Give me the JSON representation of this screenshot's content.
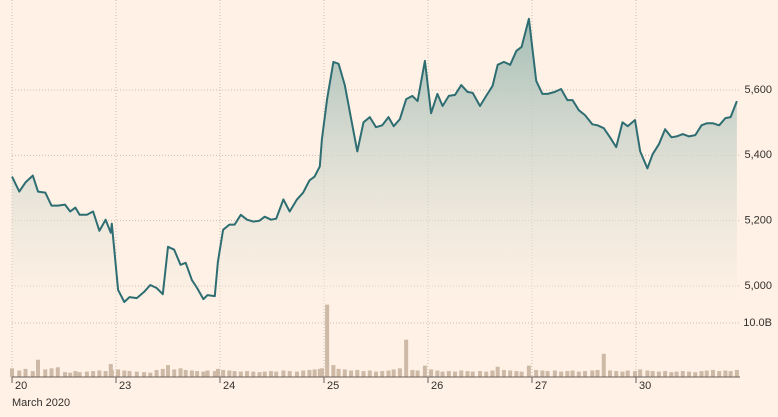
{
  "chart_data": [
    {
      "type": "area",
      "color": "#2e6e73",
      "x": [
        0,
        0.07,
        0.13,
        0.2,
        0.25,
        0.32,
        0.38,
        0.44,
        0.51,
        0.56,
        0.61,
        0.65,
        0.72,
        0.78,
        0.84,
        0.9,
        0.95,
        0.96,
        1.02,
        1.08,
        1.13,
        1.2,
        1.27,
        1.33,
        1.39,
        1.45,
        1.5,
        1.56,
        1.62,
        1.67,
        1.73,
        1.78,
        1.84,
        1.88,
        1.95,
        1.98,
        2.03,
        2.09,
        2.14,
        2.2,
        2.26,
        2.32,
        2.38,
        2.43,
        2.49,
        2.54,
        2.61,
        2.67,
        2.74,
        2.8,
        2.86,
        2.91,
        2.96,
        2.98,
        3.03,
        3.09,
        3.14,
        3.2,
        3.26,
        3.32,
        3.38,
        3.44,
        3.5,
        3.56,
        3.62,
        3.67,
        3.73,
        3.79,
        3.85,
        3.9,
        3.97,
        4.03,
        4.09,
        4.14,
        4.2,
        4.26,
        4.32,
        4.38,
        4.43,
        4.5,
        4.56,
        4.62,
        4.67,
        4.73,
        4.79,
        4.85,
        4.9,
        4.97,
        5.04,
        5.1,
        5.15,
        5.22,
        5.28,
        5.34,
        5.39,
        5.45,
        5.51,
        5.58,
        5.63,
        5.69,
        5.75,
        5.81,
        5.87,
        5.92,
        5.99,
        6.04,
        6.11,
        6.16,
        6.22,
        6.28,
        6.34,
        6.39,
        6.45,
        6.51,
        6.57,
        6.63,
        6.68,
        6.74,
        6.8,
        6.86,
        6.91,
        6.97
      ],
      "values": [
        5335,
        5289,
        5317,
        5338,
        5289,
        5286,
        5246,
        5246,
        5249,
        5228,
        5240,
        5218,
        5218,
        5228,
        5169,
        5203,
        5163,
        5191,
        4988,
        4951,
        4966,
        4963,
        4982,
        5003,
        4994,
        4975,
        5120,
        5111,
        5065,
        5071,
        5018,
        4994,
        4960,
        4972,
        4969,
        5074,
        5172,
        5188,
        5188,
        5218,
        5203,
        5197,
        5200,
        5212,
        5203,
        5206,
        5265,
        5228,
        5265,
        5286,
        5323,
        5335,
        5366,
        5449,
        5572,
        5686,
        5680,
        5615,
        5514,
        5412,
        5501,
        5517,
        5486,
        5492,
        5517,
        5489,
        5511,
        5572,
        5582,
        5566,
        5689,
        5529,
        5588,
        5551,
        5582,
        5585,
        5615,
        5594,
        5591,
        5551,
        5582,
        5612,
        5677,
        5686,
        5677,
        5720,
        5732,
        5818,
        5628,
        5588,
        5588,
        5594,
        5603,
        5569,
        5569,
        5538,
        5523,
        5495,
        5492,
        5483,
        5455,
        5425,
        5501,
        5489,
        5508,
        5412,
        5360,
        5403,
        5434,
        5480,
        5455,
        5458,
        5465,
        5458,
        5462,
        5492,
        5498,
        5498,
        5492,
        5514,
        5517,
        5566
      ],
      "xlim": [
        0,
        7
      ],
      "ylim": [
        4940,
        5850
      ],
      "yticks": [
        {
          "value": 5000,
          "label": "5,000"
        },
        {
          "value": 5200,
          "label": "5,200"
        },
        {
          "value": 5400,
          "label": "5,400"
        },
        {
          "value": 5600,
          "label": "5,600"
        }
      ],
      "grid": true
    },
    {
      "type": "bar",
      "color": "#cdb9a6",
      "xlabel": "March 2020",
      "x": [
        0,
        0.07,
        0.13,
        0.2,
        0.25,
        0.32,
        0.38,
        0.44,
        0.51,
        0.56,
        0.61,
        0.65,
        0.72,
        0.78,
        0.84,
        0.9,
        0.95,
        0.96,
        1.02,
        1.08,
        1.13,
        1.2,
        1.27,
        1.33,
        1.39,
        1.45,
        1.5,
        1.56,
        1.62,
        1.67,
        1.73,
        1.78,
        1.84,
        1.88,
        1.95,
        1.98,
        2.03,
        2.09,
        2.14,
        2.2,
        2.26,
        2.32,
        2.38,
        2.43,
        2.49,
        2.54,
        2.61,
        2.67,
        2.74,
        2.8,
        2.86,
        2.91,
        2.96,
        2.98,
        3.03,
        3.09,
        3.14,
        3.2,
        3.26,
        3.32,
        3.38,
        3.44,
        3.5,
        3.56,
        3.62,
        3.67,
        3.73,
        3.79,
        3.85,
        3.9,
        3.97,
        4.03,
        4.09,
        4.14,
        4.2,
        4.26,
        4.32,
        4.38,
        4.43,
        4.5,
        4.56,
        4.62,
        4.67,
        4.73,
        4.79,
        4.85,
        4.9,
        4.97,
        5.04,
        5.1,
        5.15,
        5.22,
        5.28,
        5.34,
        5.39,
        5.45,
        5.51,
        5.58,
        5.63,
        5.69,
        5.75,
        5.81,
        5.87,
        5.92,
        5.99,
        6.04,
        6.11,
        6.16,
        6.22,
        6.28,
        6.34,
        6.39,
        6.45,
        6.51,
        6.57,
        6.63,
        6.68,
        6.74,
        6.8,
        6.86,
        6.91,
        6.97
      ],
      "values": [
        1.6,
        1.2,
        1.5,
        1.1,
        3.2,
        1.4,
        1.6,
        1.8,
        0.9,
        0.8,
        1.1,
        0.9,
        1.0,
        1.1,
        1.2,
        1.1,
        2.4,
        1.3,
        1.4,
        1.2,
        1.1,
        1.0,
        0.9,
        0.8,
        1.3,
        1.5,
        2.2,
        1.4,
        1.6,
        1.3,
        1.2,
        1.1,
        1.0,
        1.2,
        1.1,
        1.5,
        1.3,
        1.2,
        1.1,
        1.0,
        1.1,
        1.0,
        0.9,
        1.0,
        1.1,
        1.0,
        1.2,
        1.1,
        1.0,
        1.2,
        1.3,
        1.4,
        1.5,
        1.6,
        13.4,
        2.2,
        1.5,
        1.4,
        1.2,
        1.3,
        1.1,
        1.2,
        1.0,
        1.1,
        1.2,
        1.4,
        1.6,
        6.9,
        1.3,
        1.2,
        2.1,
        1.4,
        1.2,
        1.0,
        1.1,
        1.0,
        1.2,
        1.1,
        1.0,
        1.1,
        1.0,
        1.2,
        1.9,
        1.3,
        1.2,
        1.1,
        1.0,
        2.1,
        1.3,
        1.2,
        1.1,
        1.2,
        1.0,
        1.1,
        1.2,
        1.0,
        1.1,
        1.2,
        1.3,
        4.3,
        1.2,
        1.1,
        1.0,
        1.2,
        1.1,
        1.4,
        1.2,
        1.1,
        1.0,
        1.1,
        0.9,
        1.0,
        1.1,
        1.0,
        0.9,
        1.1,
        1.2,
        1.3,
        1.1,
        1.2,
        1.1,
        1.3
      ],
      "xlim": [
        0,
        7
      ],
      "ylim": [
        0,
        14
      ],
      "xticks": [
        {
          "value": 0,
          "label": "20"
        },
        {
          "value": 1,
          "label": "23"
        },
        {
          "value": 2,
          "label": "24"
        },
        {
          "value": 3,
          "label": "25"
        },
        {
          "value": 4,
          "label": "26"
        },
        {
          "value": 5,
          "label": "27"
        },
        {
          "value": 6,
          "label": "30"
        }
      ],
      "yticks": [
        {
          "value": 10,
          "label": "10.0B"
        }
      ],
      "grid": true
    }
  ]
}
